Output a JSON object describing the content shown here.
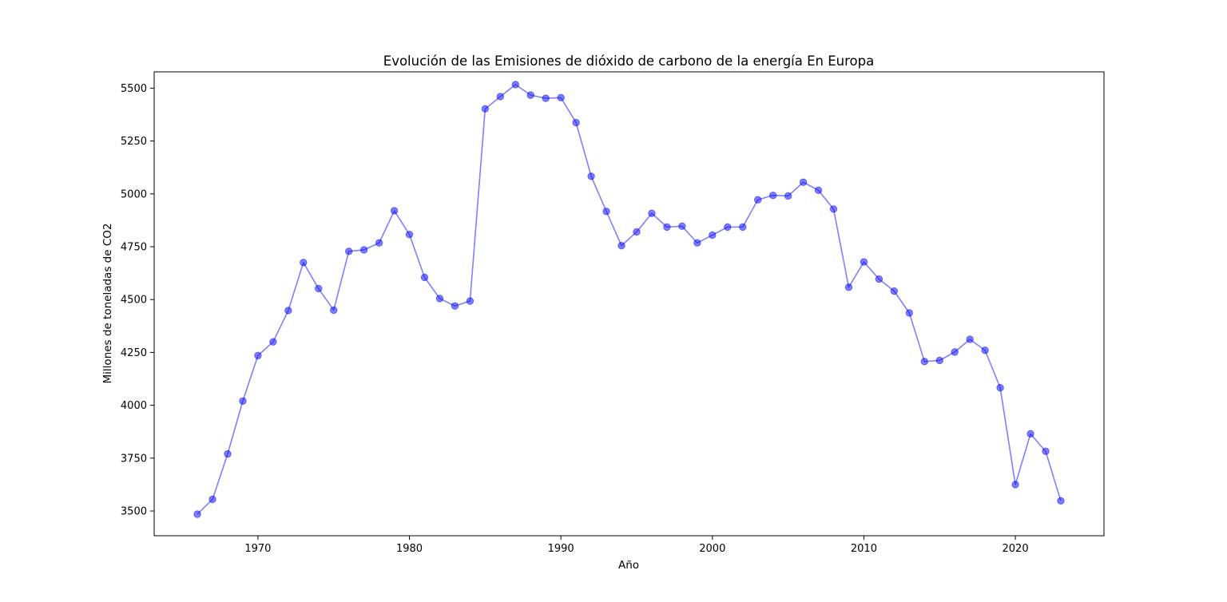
{
  "chart_data": {
    "type": "line",
    "title": "Evolución de las Emisiones de dióxido de carbono de la energía En Europa",
    "xlabel": "Año",
    "ylabel": "Millones de toneladas de CO2",
    "xlim": [
      1963.15,
      2025.85
    ],
    "ylim": [
      3383,
      5577
    ],
    "xticks": [
      1970,
      1980,
      1990,
      2000,
      2010,
      2020
    ],
    "yticks": [
      3500,
      3750,
      4000,
      4250,
      4500,
      4750,
      5000,
      5250,
      5500
    ],
    "grid": false,
    "series": [
      {
        "color": "#0000ff",
        "opacity": 0.5,
        "marker": "circle",
        "x": [
          1966,
          1967,
          1968,
          1969,
          1970,
          1971,
          1972,
          1973,
          1974,
          1975,
          1976,
          1977,
          1978,
          1979,
          1980,
          1981,
          1982,
          1983,
          1984,
          1985,
          1986,
          1987,
          1988,
          1989,
          1990,
          1991,
          1992,
          1993,
          1994,
          1995,
          1996,
          1997,
          1998,
          1999,
          2000,
          2001,
          2002,
          2003,
          2004,
          2005,
          2006,
          2007,
          2008,
          2009,
          2010,
          2011,
          2012,
          2013,
          2014,
          2015,
          2016,
          2017,
          2018,
          2019,
          2020,
          2021,
          2022,
          2023
        ],
        "y": [
          3485,
          3555,
          3770,
          4020,
          4235,
          4300,
          4448,
          4675,
          4552,
          4450,
          4728,
          4735,
          4768,
          4920,
          4808,
          4605,
          4505,
          4470,
          4493,
          5402,
          5460,
          5517,
          5467,
          5452,
          5455,
          5337,
          5083,
          4917,
          4755,
          4820,
          4908,
          4843,
          4847,
          4768,
          4805,
          4843,
          4843,
          4972,
          4993,
          4990,
          5055,
          5017,
          4928,
          4558,
          4678,
          4597,
          4540,
          4437,
          4207,
          4212,
          4252,
          4312,
          4260,
          4083,
          3625,
          3865,
          3782,
          3548
        ]
      }
    ]
  }
}
